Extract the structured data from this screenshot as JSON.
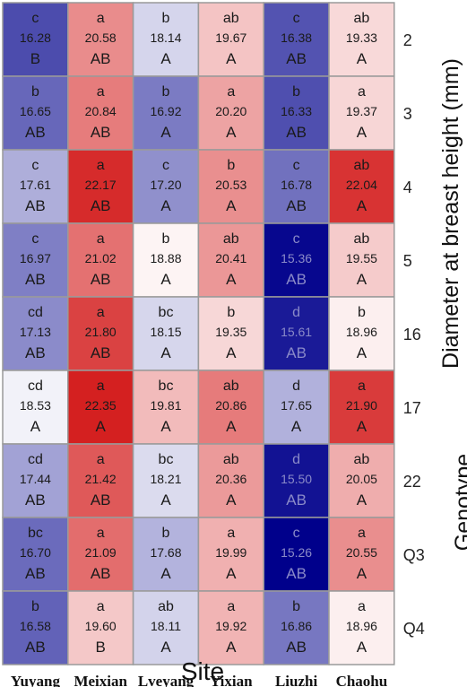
{
  "chart_data": {
    "type": "heatmap",
    "title": "",
    "xlabel": "Site",
    "ylabel": "Diameter at breast height (mm)",
    "ylabel_secondary": "Genotype",
    "columns": [
      "Yuyang",
      "Meixian",
      "Lveyang",
      "Yixian",
      "Liuzhi",
      "Chaohu"
    ],
    "rows": [
      "2",
      "3",
      "4",
      "5",
      "16",
      "17",
      "22",
      "Q3",
      "Q4"
    ],
    "values": [
      [
        16.28,
        20.58,
        18.14,
        19.67,
        16.38,
        19.33
      ],
      [
        16.65,
        20.84,
        16.92,
        20.2,
        16.33,
        19.37
      ],
      [
        17.61,
        22.17,
        17.2,
        20.53,
        16.78,
        22.04
      ],
      [
        16.97,
        21.02,
        18.88,
        20.41,
        15.36,
        19.55
      ],
      [
        17.13,
        21.8,
        18.15,
        19.35,
        15.61,
        18.96
      ],
      [
        18.53,
        22.35,
        19.81,
        20.86,
        17.65,
        21.9
      ],
      [
        17.44,
        21.42,
        18.21,
        20.36,
        15.5,
        20.05
      ],
      [
        16.7,
        21.09,
        17.68,
        19.99,
        15.26,
        20.55
      ],
      [
        16.58,
        19.6,
        18.11,
        19.92,
        16.86,
        18.96
      ]
    ],
    "value_labels": [
      [
        "16.28",
        "20.58",
        "18.14",
        "19.67",
        "16.38",
        "19.33"
      ],
      [
        "16.65",
        "20.84",
        "16.92",
        "20.20",
        "16.33",
        "19.37"
      ],
      [
        "17.61",
        "22.17",
        "17.20",
        "20.53",
        "16.78",
        "22.04"
      ],
      [
        "16.97",
        "21.02",
        "18.88",
        "20.41",
        "15.36",
        "19.55"
      ],
      [
        "17.13",
        "21.80",
        "18.15",
        "19.35",
        "15.61",
        "18.96"
      ],
      [
        "18.53",
        "22.35",
        "19.81",
        "20.86",
        "17.65",
        "21.90"
      ],
      [
        "17.44",
        "21.42",
        "18.21",
        "20.36",
        "15.50",
        "20.05"
      ],
      [
        "16.70",
        "21.09",
        "17.68",
        "19.99",
        "15.26",
        "20.55"
      ],
      [
        "16.58",
        "19.60",
        "18.11",
        "19.92",
        "16.86",
        "18.96"
      ]
    ],
    "letters_site": [
      [
        "c",
        "a",
        "b",
        "ab",
        "c",
        "ab"
      ],
      [
        "b",
        "a",
        "b",
        "a",
        "b",
        "a"
      ],
      [
        "c",
        "a",
        "c",
        "b",
        "c",
        "ab"
      ],
      [
        "c",
        "a",
        "b",
        "ab",
        "c",
        "ab"
      ],
      [
        "cd",
        "a",
        "bc",
        "b",
        "d",
        "b"
      ],
      [
        "cd",
        "a",
        "bc",
        "ab",
        "d",
        "a"
      ],
      [
        "cd",
        "a",
        "bc",
        "ab",
        "d",
        "ab"
      ],
      [
        "bc",
        "a",
        "b",
        "a",
        "c",
        "a"
      ],
      [
        "b",
        "a",
        "ab",
        "a",
        "b",
        "a"
      ]
    ],
    "letters_genotype": [
      [
        "B",
        "AB",
        "A",
        "A",
        "AB",
        "A"
      ],
      [
        "AB",
        "AB",
        "A",
        "A",
        "AB",
        "A"
      ],
      [
        "AB",
        "AB",
        "A",
        "A",
        "AB",
        "A"
      ],
      [
        "AB",
        "AB",
        "A",
        "A",
        "AB",
        "A"
      ],
      [
        "AB",
        "AB",
        "A",
        "A",
        "AB",
        "A"
      ],
      [
        "A",
        "A",
        "A",
        "A",
        "A",
        "A"
      ],
      [
        "AB",
        "AB",
        "A",
        "A",
        "AB",
        "A"
      ],
      [
        "AB",
        "AB",
        "A",
        "A",
        "AB",
        "A"
      ],
      [
        "AB",
        "B",
        "A",
        "A",
        "AB",
        "A"
      ]
    ],
    "color_scale": {
      "low": "#00008b",
      "mid": "#ffffff",
      "high": "#d42020",
      "min": 15.26,
      "mid_value": 18.7,
      "max": 22.35
    },
    "grid_color": "#9a9a9a",
    "legend": "none"
  }
}
